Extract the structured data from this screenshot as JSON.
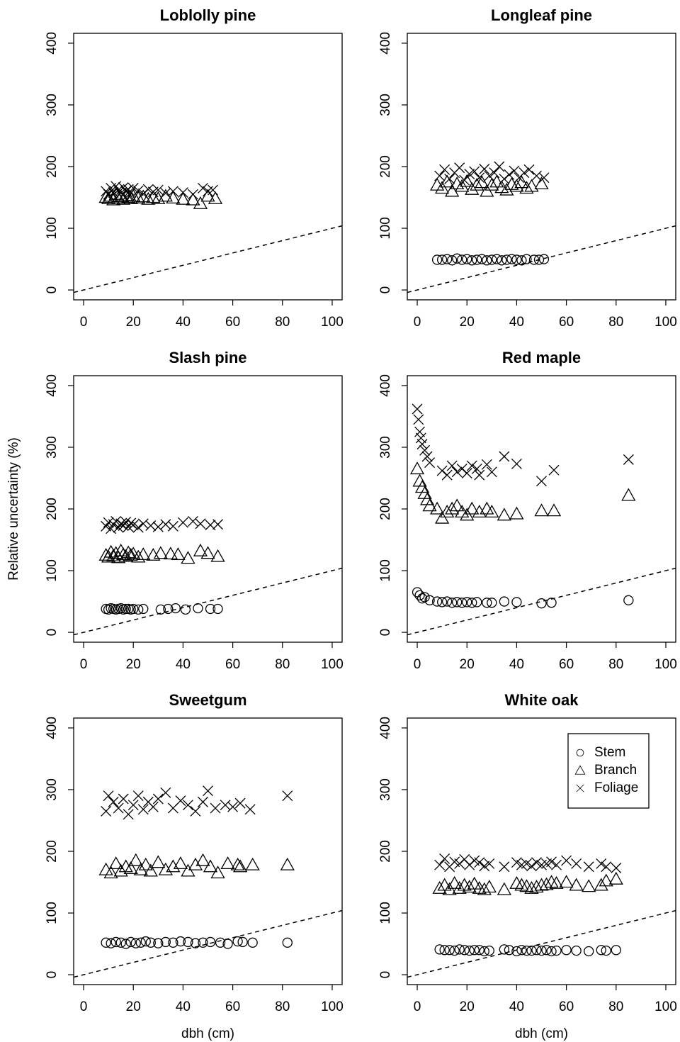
{
  "chart_data": [
    {
      "type": "scatter",
      "title": "Loblolly pine",
      "xlim": [
        -4,
        104
      ],
      "ylim": [
        -16,
        416
      ],
      "xticks": [
        0,
        20,
        40,
        60,
        80,
        100
      ],
      "yticks": [
        0,
        100,
        200,
        300,
        400
      ],
      "color": "#000000",
      "series": [
        {
          "marker": "triangle",
          "x": [
            9,
            10,
            11,
            12,
            13,
            14,
            15,
            16,
            17,
            18,
            19,
            20,
            22,
            24,
            26,
            28,
            30,
            33,
            36,
            40,
            44,
            47,
            50,
            53
          ],
          "y": [
            150,
            148,
            152,
            146,
            155,
            149,
            151,
            147,
            153,
            150,
            148,
            152,
            149,
            151,
            147,
            150,
            148,
            152,
            149,
            147,
            146,
            140,
            152,
            148
          ]
        },
        {
          "marker": "cross",
          "x": [
            9,
            10,
            11,
            12,
            13,
            14,
            15,
            16,
            17,
            18,
            19,
            20,
            22,
            24,
            26,
            28,
            30,
            33,
            36,
            40,
            44,
            48,
            50,
            52
          ],
          "y": [
            160,
            155,
            165,
            158,
            168,
            162,
            157,
            166,
            160,
            163,
            158,
            165,
            161,
            156,
            163,
            159,
            162,
            157,
            160,
            158,
            155,
            165,
            160,
            162
          ]
        }
      ]
    },
    {
      "type": "scatter",
      "title": "Longleaf pine",
      "xlim": [
        -4,
        104
      ],
      "ylim": [
        -16,
        416
      ],
      "xticks": [
        0,
        20,
        40,
        60,
        80,
        100
      ],
      "yticks": [
        0,
        100,
        200,
        300,
        400
      ],
      "color": "#000000",
      "series": [
        {
          "marker": "circle",
          "x": [
            8,
            10,
            12,
            14,
            16,
            18,
            20,
            22,
            24,
            26,
            28,
            30,
            32,
            34,
            36,
            38,
            40,
            42,
            44,
            47,
            49,
            51
          ],
          "y": [
            49,
            49,
            50,
            48,
            51,
            49,
            50,
            48,
            49,
            50,
            48,
            49,
            50,
            48,
            49,
            50,
            49,
            48,
            50,
            49,
            49,
            50
          ]
        },
        {
          "marker": "triangle",
          "x": [
            8,
            10,
            12,
            14,
            16,
            18,
            20,
            22,
            24,
            26,
            28,
            30,
            32,
            34,
            36,
            38,
            40,
            42,
            44,
            46,
            50
          ],
          "y": [
            170,
            165,
            175,
            160,
            172,
            168,
            176,
            163,
            170,
            174,
            160,
            170,
            175,
            166,
            162,
            171,
            168,
            174,
            165,
            168,
            172
          ]
        },
        {
          "marker": "cross",
          "x": [
            9,
            11,
            13,
            15,
            17,
            19,
            21,
            23,
            25,
            27,
            29,
            31,
            33,
            35,
            37,
            39,
            41,
            43,
            45,
            48,
            51
          ],
          "y": [
            185,
            195,
            180,
            190,
            198,
            178,
            188,
            192,
            182,
            196,
            185,
            190,
            200,
            180,
            187,
            193,
            182,
            190,
            195,
            185,
            182
          ]
        }
      ]
    },
    {
      "type": "scatter",
      "title": "Slash pine",
      "y_label": "Relative uncertainty (%)",
      "xlim": [
        -4,
        104
      ],
      "ylim": [
        -16,
        416
      ],
      "xticks": [
        0,
        20,
        40,
        60,
        80,
        100
      ],
      "yticks": [
        0,
        100,
        200,
        300,
        400
      ],
      "color": "#000000",
      "series": [
        {
          "marker": "circle",
          "x": [
            9,
            10,
            11,
            12,
            13,
            14,
            15,
            16,
            17,
            18,
            19,
            20,
            22,
            24,
            31,
            34,
            37,
            41,
            46,
            51,
            54
          ],
          "y": [
            38,
            37,
            39,
            38,
            37,
            38,
            39,
            37,
            38,
            38,
            37,
            38,
            37,
            38,
            37,
            38,
            39,
            37,
            39,
            38,
            38
          ]
        },
        {
          "marker": "triangle",
          "x": [
            9,
            10,
            11,
            12,
            13,
            14,
            15,
            16,
            17,
            18,
            19,
            20,
            22,
            24,
            28,
            31,
            35,
            38,
            42,
            47,
            50,
            54
          ],
          "y": [
            125,
            122,
            130,
            124,
            128,
            121,
            132,
            126,
            123,
            129,
            125,
            127,
            122,
            126,
            125,
            128,
            127,
            126,
            120,
            132,
            128,
            123
          ]
        },
        {
          "marker": "cross",
          "x": [
            9,
            10,
            11,
            12,
            13,
            14,
            15,
            16,
            17,
            18,
            19,
            20,
            22,
            24,
            27,
            30,
            33,
            36,
            40,
            44,
            47,
            51,
            54
          ],
          "y": [
            172,
            178,
            168,
            175,
            180,
            170,
            176,
            173,
            179,
            171,
            177,
            174,
            170,
            176,
            173,
            171,
            175,
            172,
            178,
            180,
            176,
            174,
            175
          ]
        }
      ]
    },
    {
      "type": "scatter",
      "title": "Red maple",
      "xlim": [
        -4,
        104
      ],
      "ylim": [
        -16,
        416
      ],
      "xticks": [
        0,
        20,
        40,
        60,
        80,
        100
      ],
      "yticks": [
        0,
        100,
        200,
        300,
        400
      ],
      "color": "#000000",
      "series": [
        {
          "marker": "circle",
          "x": [
            0,
            1,
            2,
            3,
            5,
            8,
            10,
            12,
            14,
            16,
            18,
            20,
            22,
            24,
            28,
            30,
            35,
            40,
            50,
            54,
            85
          ],
          "y": [
            65,
            60,
            55,
            57,
            52,
            50,
            49,
            50,
            48,
            49,
            48,
            49,
            48,
            49,
            48,
            48,
            50,
            49,
            47,
            48,
            52
          ]
        },
        {
          "marker": "triangle",
          "x": [
            0,
            1,
            2,
            3,
            4,
            5,
            8,
            10,
            12,
            14,
            16,
            18,
            20,
            22,
            25,
            28,
            30,
            35,
            40,
            50,
            55,
            85
          ],
          "y": [
            265,
            245,
            235,
            225,
            215,
            205,
            200,
            185,
            195,
            200,
            205,
            195,
            190,
            200,
            195,
            200,
            195,
            190,
            192,
            197,
            197,
            222
          ]
        },
        {
          "marker": "cross",
          "x": [
            0,
            0.5,
            1,
            1.5,
            2,
            3,
            4,
            5,
            10,
            12,
            14,
            16,
            18,
            20,
            22,
            24,
            25,
            28,
            30,
            35,
            40,
            50,
            55,
            85
          ],
          "y": [
            362,
            345,
            325,
            315,
            305,
            295,
            285,
            275,
            262,
            255,
            270,
            260,
            265,
            258,
            270,
            265,
            255,
            272,
            260,
            285,
            273,
            245,
            263,
            280
          ]
        }
      ]
    },
    {
      "type": "scatter",
      "title": "Sweetgum",
      "x_label": "dbh (cm)",
      "xlim": [
        -4,
        104
      ],
      "ylim": [
        -16,
        416
      ],
      "xticks": [
        0,
        20,
        40,
        60,
        80,
        100
      ],
      "yticks": [
        0,
        100,
        200,
        300,
        400
      ],
      "color": "#000000",
      "series": [
        {
          "marker": "circle",
          "x": [
            9,
            11,
            13,
            15,
            17,
            19,
            21,
            23,
            25,
            27,
            30,
            33,
            36,
            39,
            42,
            45,
            48,
            51,
            55,
            58,
            62,
            64,
            68,
            82
          ],
          "y": [
            52,
            51,
            53,
            52,
            50,
            53,
            51,
            52,
            54,
            52,
            51,
            53,
            52,
            54,
            53,
            51,
            52,
            53,
            52,
            50,
            54,
            53,
            52,
            52
          ]
        },
        {
          "marker": "triangle",
          "x": [
            9,
            11,
            13,
            15,
            17,
            19,
            21,
            23,
            25,
            27,
            30,
            33,
            36,
            39,
            42,
            45,
            48,
            51,
            54,
            58,
            62,
            63,
            68,
            82
          ],
          "y": [
            170,
            165,
            180,
            168,
            175,
            172,
            185,
            170,
            178,
            168,
            182,
            170,
            175,
            180,
            168,
            178,
            185,
            175,
            165,
            180,
            178,
            175,
            178,
            178
          ]
        },
        {
          "marker": "cross",
          "x": [
            9,
            10,
            12,
            14,
            16,
            18,
            20,
            22,
            24,
            26,
            28,
            30,
            33,
            36,
            39,
            42,
            45,
            48,
            50,
            53,
            57,
            60,
            63,
            67,
            82
          ],
          "y": [
            265,
            290,
            280,
            270,
            285,
            260,
            275,
            290,
            268,
            280,
            272,
            285,
            295,
            270,
            282,
            275,
            265,
            280,
            298,
            270,
            275,
            272,
            278,
            268,
            290
          ]
        }
      ]
    },
    {
      "type": "scatter",
      "title": "White oak",
      "x_label": "dbh (cm)",
      "legend": "topright",
      "xlim": [
        -4,
        104
      ],
      "ylim": [
        -16,
        416
      ],
      "xticks": [
        0,
        20,
        40,
        60,
        80,
        100
      ],
      "yticks": [
        0,
        100,
        200,
        300,
        400
      ],
      "color": "#000000",
      "series": [
        {
          "name": "Stem",
          "marker": "circle",
          "x": [
            9,
            11,
            13,
            15,
            17,
            19,
            21,
            23,
            25,
            27,
            29,
            35,
            37,
            40,
            42,
            44,
            46,
            48,
            50,
            52,
            54,
            56,
            60,
            64,
            69,
            74,
            76,
            80
          ],
          "y": [
            41,
            40,
            40,
            39,
            41,
            40,
            39,
            40,
            40,
            38,
            39,
            41,
            40,
            38,
            40,
            39,
            39,
            40,
            39,
            40,
            38,
            39,
            40,
            39,
            38,
            40,
            39,
            40
          ]
        },
        {
          "name": "Branch",
          "marker": "triangle",
          "x": [
            9,
            11,
            13,
            15,
            17,
            19,
            21,
            23,
            25,
            27,
            29,
            35,
            40,
            42,
            44,
            46,
            48,
            50,
            52,
            54,
            56,
            60,
            64,
            69,
            74,
            76,
            80
          ],
          "y": [
            140,
            145,
            138,
            148,
            140,
            145,
            142,
            147,
            140,
            138,
            142,
            138,
            148,
            145,
            143,
            140,
            142,
            145,
            146,
            150,
            148,
            150,
            145,
            143,
            145,
            152,
            155
          ]
        },
        {
          "name": "Foliage",
          "marker": "cross",
          "x": [
            9,
            11,
            13,
            15,
            17,
            19,
            21,
            23,
            25,
            27,
            29,
            35,
            40,
            42,
            44,
            46,
            48,
            50,
            52,
            54,
            56,
            60,
            64,
            69,
            74,
            76,
            80
          ],
          "y": [
            178,
            188,
            175,
            183,
            180,
            187,
            178,
            185,
            182,
            176,
            180,
            175,
            182,
            178,
            180,
            176,
            182,
            178,
            180,
            183,
            178,
            185,
            180,
            175,
            180,
            175,
            173
          ]
        }
      ]
    }
  ]
}
